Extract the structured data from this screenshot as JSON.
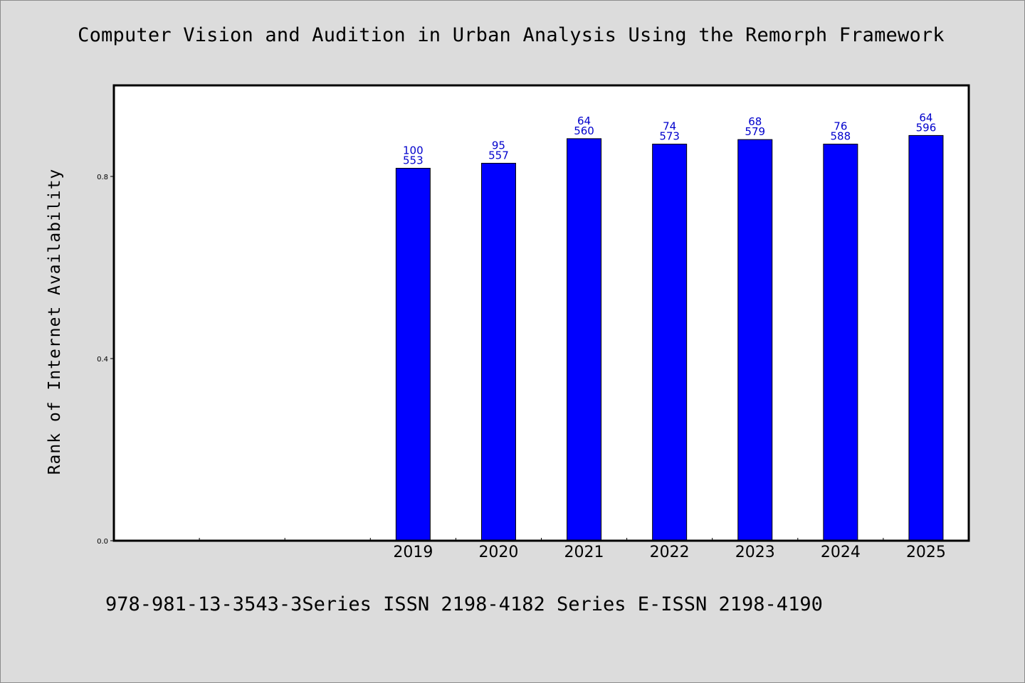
{
  "chart_data": {
    "type": "bar",
    "title": "Computer Vision and Audition in Urban Analysis Using the Remorph Framework",
    "xlabel": "",
    "ylabel": "Rank of Internet Availability",
    "categories": [
      "",
      "",
      "",
      "2019",
      "2020",
      "2021",
      "2022",
      "2023",
      "2024",
      "2025"
    ],
    "values": [
      null,
      null,
      null,
      0.818,
      0.829,
      0.883,
      0.871,
      0.881,
      0.871,
      0.89
    ],
    "annotations": [
      null,
      null,
      null,
      [
        "100",
        "553"
      ],
      [
        "95",
        "557"
      ],
      [
        "64",
        "560"
      ],
      [
        "74",
        "573"
      ],
      [
        "68",
        "579"
      ],
      [
        "76",
        "588"
      ],
      [
        "64",
        "596"
      ]
    ],
    "ylim": [
      0.0,
      1.0
    ],
    "yticks": [
      0.0,
      0.4,
      0.8
    ],
    "ytick_labels": [
      "0.0",
      "0.4",
      "0.8"
    ],
    "grid": false,
    "colors": {
      "bar": "#0000ff",
      "annotation": "#0000cc",
      "background": "#dcdcdc",
      "plot": "#ffffff"
    }
  },
  "footer": "978-981-13-3543-3Series ISSN 2198-4182 Series E-ISSN 2198-4190"
}
